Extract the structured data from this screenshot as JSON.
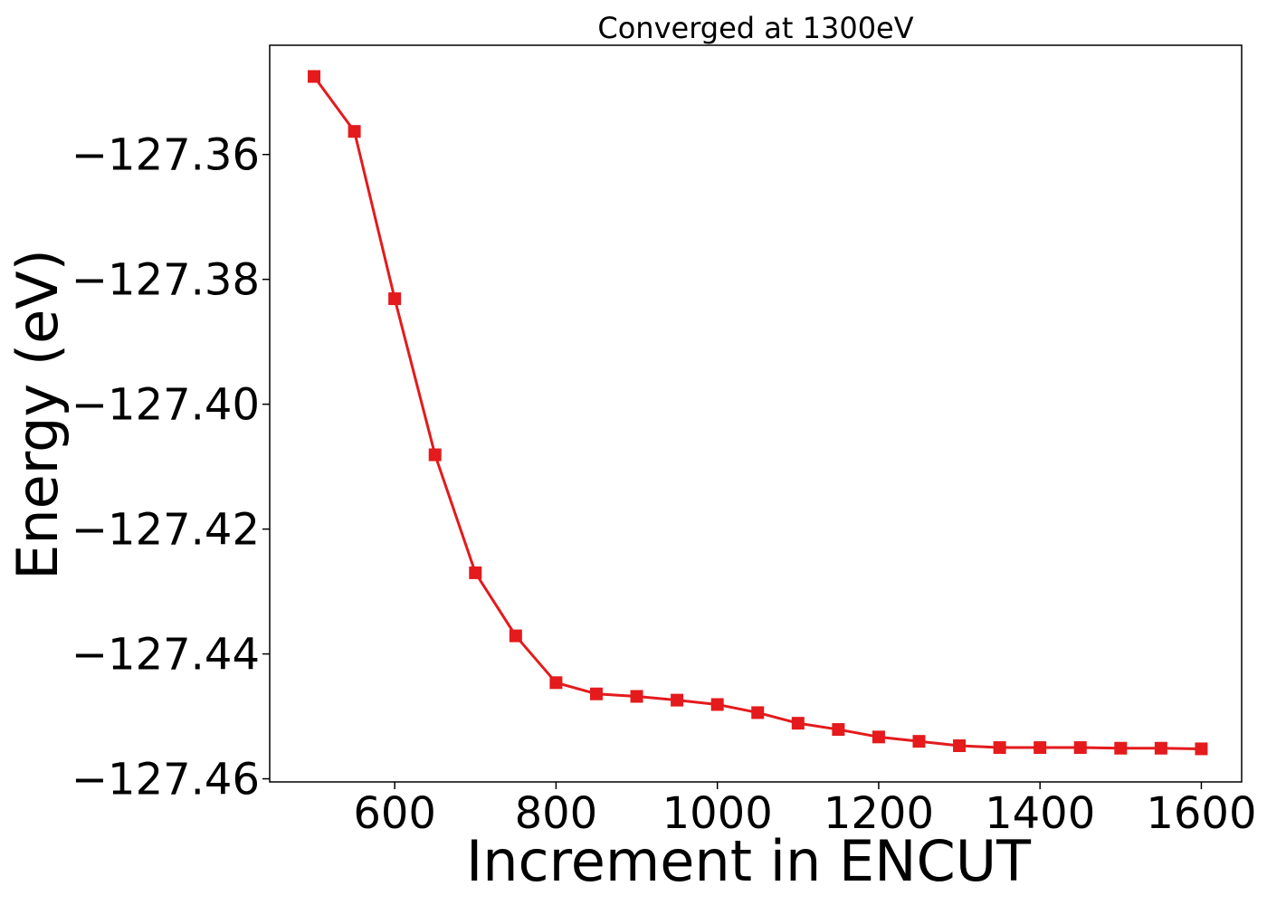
{
  "chart_data": {
    "type": "line",
    "title": "Converged at 1300eV",
    "xlabel": "Increment in ENCUT",
    "ylabel": "Energy (eV)",
    "x": [
      500,
      550,
      600,
      650,
      700,
      750,
      800,
      850,
      900,
      950,
      1000,
      1050,
      1100,
      1150,
      1200,
      1250,
      1300,
      1350,
      1400,
      1450,
      1500,
      1550,
      1600
    ],
    "series": [
      {
        "values": [
          -127.3475,
          -127.3563,
          -127.3831,
          -127.4081,
          -127.427,
          -127.4371,
          -127.4446,
          -127.4464,
          -127.4468,
          -127.4474,
          -127.4481,
          -127.4494,
          -127.4511,
          -127.4521,
          -127.4533,
          -127.454,
          -127.4547,
          -127.455,
          -127.455,
          -127.455,
          -127.4551,
          -127.4551,
          -127.4552
        ],
        "color": "#e41a1c",
        "marker": "square"
      }
    ],
    "xlim": [
      445,
      1650
    ],
    "ylim": [
      -127.4605,
      -127.3425
    ],
    "xticks": [
      600,
      800,
      1000,
      1200,
      1400,
      1600
    ],
    "xtick_labels": [
      "600",
      "800",
      "1000",
      "1200",
      "1400",
      "1600"
    ],
    "yticks": [
      -127.36,
      -127.38,
      -127.4,
      -127.42,
      -127.44,
      -127.46
    ],
    "ytick_labels": [
      "−127.36",
      "−127.38",
      "−127.40",
      "−127.42",
      "−127.44",
      "−127.46"
    ],
    "grid": false,
    "legend": "none"
  }
}
